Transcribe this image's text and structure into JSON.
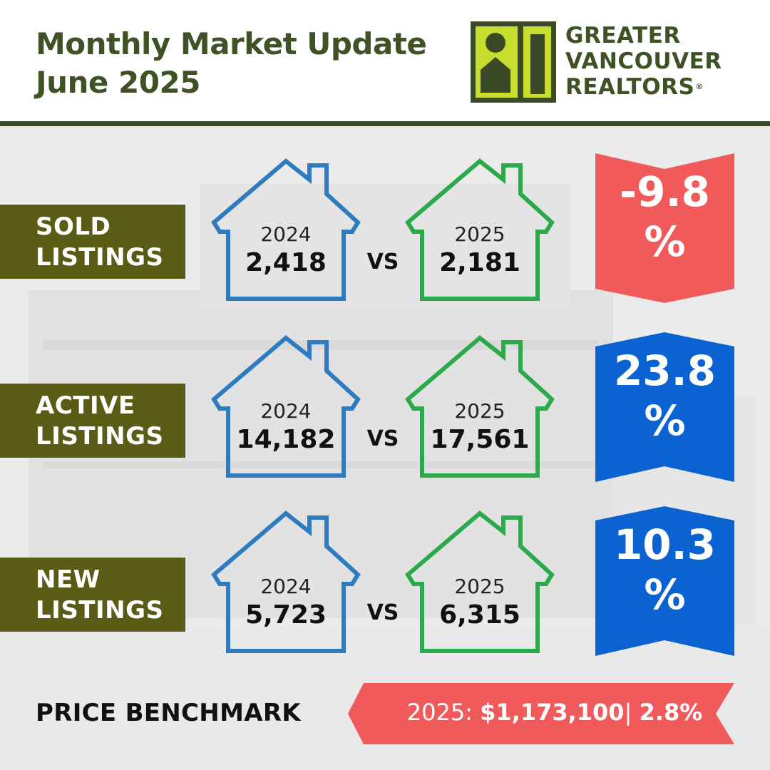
{
  "header": {
    "title_line1": "Monthly Market Update",
    "title_line2": "June 2025",
    "logo_line1": "GREATER",
    "logo_line2": "VANCOUVER",
    "logo_line3": "REALTORS",
    "logo_registered": "®"
  },
  "colors": {
    "title_green": "#3e5226",
    "label_olive": "#5a5b14",
    "house_2024_blue": "#2f7bbf",
    "house_2025_green": "#2aaa4a",
    "decrease_red": "#f05a5a",
    "increase_blue": "#0a63d0",
    "logo_lime": "#c7de2c",
    "logo_dark": "#3a4a26"
  },
  "vs_label": "VS",
  "metrics": [
    {
      "label_line1": "SOLD",
      "label_line2": "LISTINGS",
      "year_2024": "2024",
      "value_2024": "2,418",
      "year_2025": "2025",
      "value_2025": "2,181",
      "change_number": "-9.8",
      "change_symbol": "%",
      "direction": "down"
    },
    {
      "label_line1": "ACTIVE",
      "label_line2": "LISTINGS",
      "year_2024": "2024",
      "value_2024": "14,182",
      "year_2025": "2025",
      "value_2025": "17,561",
      "change_number": "23.8",
      "change_symbol": "%",
      "direction": "up"
    },
    {
      "label_line1": "NEW",
      "label_line2": "LISTINGS",
      "year_2024": "2024",
      "value_2024": "5,723",
      "year_2025": "2025",
      "value_2025": "6,315",
      "change_number": "10.3",
      "change_symbol": "%",
      "direction": "up"
    }
  ],
  "price_benchmark": {
    "label": "PRICE BENCHMARK",
    "year_prefix": "2025: ",
    "value": "$1,173,100",
    "separator": "| ",
    "change": "2.8%"
  }
}
